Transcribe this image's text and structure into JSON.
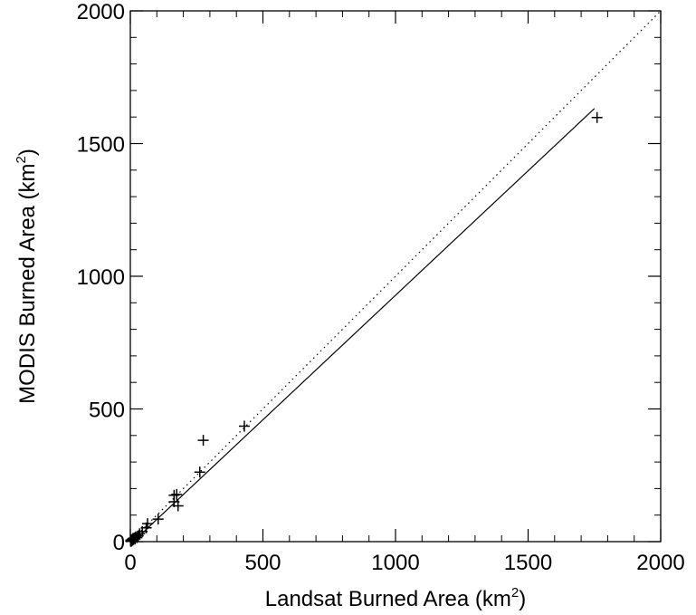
{
  "chart_data": {
    "type": "scatter",
    "xlabel": "Landsat Burned Area (km",
    "xlabel_sup": "2",
    "xlabel_end": ")",
    "ylabel": "MODIS Burned Area (km",
    "ylabel_sup": "2",
    "ylabel_end": ")",
    "xlim": [
      0,
      2000
    ],
    "ylim": [
      0,
      2000
    ],
    "xticks": [
      0,
      500,
      1000,
      1500,
      2000
    ],
    "yticks": [
      0,
      500,
      1000,
      1500,
      2000
    ],
    "xtick_labels": [
      "0",
      "500",
      "1000",
      "1500",
      "2000"
    ],
    "ytick_labels": [
      "0",
      "500",
      "1000",
      "1500",
      "2000"
    ],
    "minor_tick_step": 100,
    "marker": "+",
    "grid": false,
    "points": [
      {
        "x": 1,
        "y": 2
      },
      {
        "x": 2,
        "y": 5
      },
      {
        "x": 3,
        "y": 1
      },
      {
        "x": 4,
        "y": 3
      },
      {
        "x": 5,
        "y": 7
      },
      {
        "x": 6,
        "y": 4
      },
      {
        "x": 7,
        "y": 9
      },
      {
        "x": 9,
        "y": 6
      },
      {
        "x": 10,
        "y": 12
      },
      {
        "x": 12,
        "y": 8
      },
      {
        "x": 15,
        "y": 14
      },
      {
        "x": 18,
        "y": 10
      },
      {
        "x": 20,
        "y": 18
      },
      {
        "x": 25,
        "y": 15
      },
      {
        "x": 30,
        "y": 22
      },
      {
        "x": 35,
        "y": 30
      },
      {
        "x": 45,
        "y": 38
      },
      {
        "x": 60,
        "y": 52
      },
      {
        "x": 65,
        "y": 68
      },
      {
        "x": 105,
        "y": 85
      },
      {
        "x": 165,
        "y": 150
      },
      {
        "x": 165,
        "y": 175
      },
      {
        "x": 175,
        "y": 178
      },
      {
        "x": 180,
        "y": 135
      },
      {
        "x": 262,
        "y": 262
      },
      {
        "x": 275,
        "y": 382
      },
      {
        "x": 430,
        "y": 435
      },
      {
        "x": 1760,
        "y": 1598
      }
    ],
    "lines": [
      {
        "kind": "one-to-one",
        "style": "dotted",
        "x": [
          0,
          2000
        ],
        "y": [
          0,
          2000
        ]
      },
      {
        "kind": "regression",
        "style": "solid",
        "x": [
          0,
          1750
        ],
        "y": [
          -10,
          1632
        ]
      }
    ]
  }
}
